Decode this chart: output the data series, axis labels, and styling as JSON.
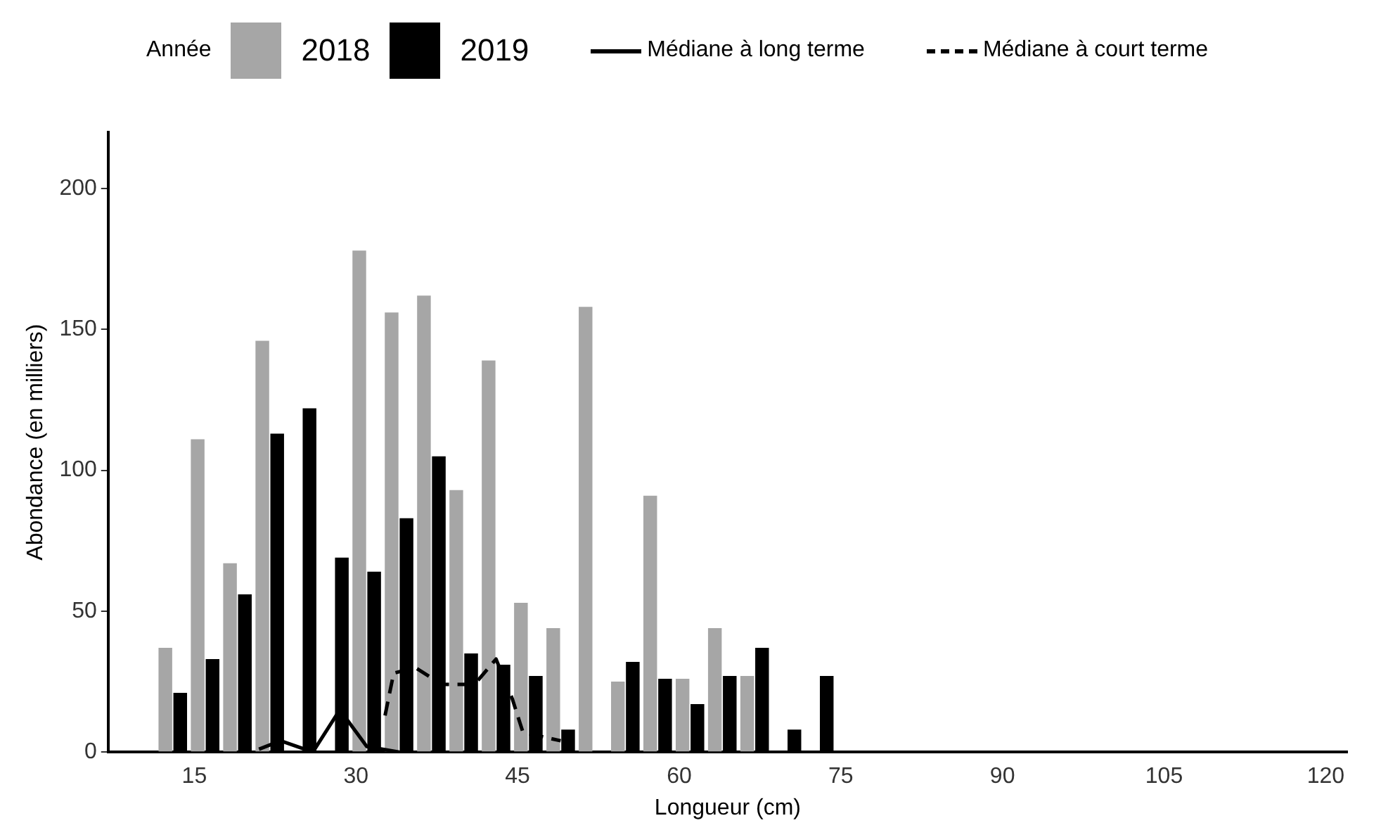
{
  "chart_data": {
    "type": "bar",
    "legend_title": "Année",
    "xlabel": "Longueur (cm)",
    "ylabel": "Abondance (en milliers)",
    "x": [
      13,
      16,
      19,
      22,
      25,
      28,
      31,
      34,
      37,
      40,
      43,
      46,
      49,
      52,
      55,
      58,
      61,
      64,
      67,
      70,
      73
    ],
    "series": [
      {
        "name": "2018",
        "color": "#a6a6a6",
        "values": [
          37,
          111,
          67,
          146,
          null,
          null,
          178,
          156,
          162,
          93,
          139,
          53,
          44,
          158,
          25,
          91,
          26,
          44,
          27,
          null,
          null
        ]
      },
      {
        "name": "2019",
        "color": "#000000",
        "values": [
          21,
          33,
          56,
          113,
          122,
          69,
          64,
          83,
          105,
          35,
          31,
          27,
          8,
          null,
          32,
          26,
          17,
          27,
          37,
          8,
          27
        ]
      },
      {
        "name": "Médiane à long terme",
        "type": "line",
        "line_style": "solid",
        "color": "#000000",
        "x": [
          21,
          23,
          26,
          28.5,
          31,
          34
        ],
        "values": [
          1,
          4,
          0,
          15,
          2,
          0
        ]
      },
      {
        "name": "Médiane à court terme",
        "type": "line",
        "line_style": "dashed",
        "color": "#000000",
        "x": [
          32.7,
          33.5,
          35.5,
          38,
          41,
          43,
          44.5,
          45.5,
          49
        ],
        "values": [
          13,
          28,
          30,
          24,
          24,
          33,
          19,
          7,
          4
        ]
      }
    ],
    "xlim": [
      7,
      122
    ],
    "xticks": [
      15,
      30,
      45,
      60,
      75,
      90,
      105,
      120
    ],
    "ylim": [
      0,
      220
    ],
    "yticks": [
      0,
      50,
      100,
      150,
      200
    ],
    "grid": false,
    "legend": "top"
  }
}
